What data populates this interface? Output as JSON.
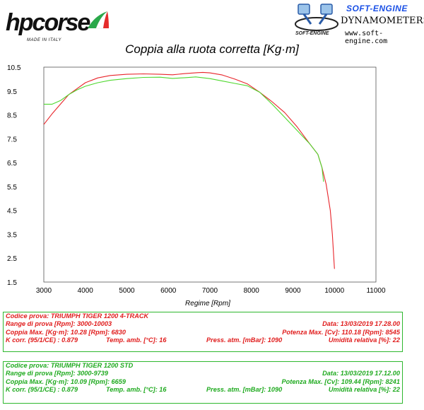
{
  "header": {
    "hp_logo": {
      "word": "hpcorse",
      "sub": "MADE IN ITALY"
    },
    "soft_engine": {
      "title": "SOFT-ENGINE",
      "subtitle": "DYNAMOMETERS",
      "url": "www.soft-engine.com",
      "small": "SOFT-ENGINE"
    }
  },
  "chart_data": {
    "type": "line",
    "title": "Coppia alla ruota corretta [Kg·m]",
    "xlabel": "Regime [Rpm]",
    "ylabel": "",
    "xlim": [
      3000,
      11000
    ],
    "ylim": [
      1.5,
      10.5
    ],
    "x_ticks": [
      "3000",
      "4000",
      "5000",
      "6000",
      "7000",
      "8000",
      "9000",
      "10000",
      "11000"
    ],
    "y_ticks": [
      "10.5",
      "9.5",
      "8.5",
      "7.5",
      "6.5",
      "5.5",
      "4.5",
      "3.5",
      "2.5",
      "1.5"
    ],
    "grid": false,
    "series": [
      {
        "name": "TRIUMPH TIGER 1200 4-TRACK",
        "color": "#e8242a",
        "x": [
          3000,
          3200,
          3400,
          3600,
          3800,
          4000,
          4300,
          4600,
          5000,
          5400,
          5800,
          6100,
          6400,
          6700,
          6830,
          7000,
          7300,
          7600,
          7900,
          8200,
          8500,
          8800,
          9100,
          9400,
          9600,
          9700,
          9800,
          9900,
          9950,
          10000
        ],
        "y": [
          8.1,
          8.55,
          8.95,
          9.35,
          9.6,
          9.85,
          10.05,
          10.15,
          10.2,
          10.22,
          10.2,
          10.18,
          10.23,
          10.27,
          10.28,
          10.26,
          10.17,
          10.0,
          9.8,
          9.45,
          9.05,
          8.6,
          8.0,
          7.3,
          6.85,
          6.3,
          5.6,
          4.5,
          3.5,
          2.05
        ]
      },
      {
        "name": "TRIUMPH TIGER 1200 STD",
        "color": "#4ed82e",
        "x": [
          3000,
          3200,
          3400,
          3600,
          3800,
          4000,
          4300,
          4600,
          5000,
          5400,
          5800,
          6100,
          6400,
          6659,
          7000,
          7300,
          7600,
          7900,
          8200,
          8500,
          8800,
          9100,
          9400,
          9600,
          9700,
          9739
        ],
        "y": [
          8.95,
          8.95,
          9.1,
          9.35,
          9.55,
          9.7,
          9.85,
          9.95,
          10.02,
          10.07,
          10.08,
          10.03,
          10.06,
          10.09,
          10.02,
          9.92,
          9.82,
          9.72,
          9.45,
          8.95,
          8.4,
          7.85,
          7.3,
          6.85,
          6.3,
          5.7
        ]
      }
    ]
  },
  "info_red": {
    "codice": "Codice prova: TRIUMPH TIGER 1200 4-TRACK",
    "range": "Range di prova [Rpm]: 3000-10003",
    "data": "Data: 13/03/2019   17.28.00",
    "coppia": "Coppia Max. [Kg·m]: 10.28   [Rpm]: 6830",
    "potenza": "Potenza Max. [Cv]: 110.18   [Rpm]: 8545",
    "kcorr": "K corr. (95/1/CE) : 0.879",
    "temp": "Temp. amb. [°C]: 16",
    "press": "Press. atm. [mBar]: 1090",
    "umid": "Umidità relativa [%]: 22"
  },
  "info_green": {
    "codice": "Codice prova: TRIUMPH TIGER 1200 STD",
    "range": "Range di prova [Rpm]: 3000-9739",
    "data": "Data: 13/03/2019   17.12.00",
    "coppia": "Coppia Max. [Kg·m]: 10.09   [Rpm]: 6659",
    "potenza": "Potenza Max. [Cv]: 109.44   [Rpm]: 8241",
    "kcorr": "K corr. (95/1/CE) : 0.879",
    "temp": "Temp. amb. [°C]: 16",
    "press": "Press. atm. [mBar]: 1090",
    "umid": "Umidità relativa [%]: 22"
  }
}
